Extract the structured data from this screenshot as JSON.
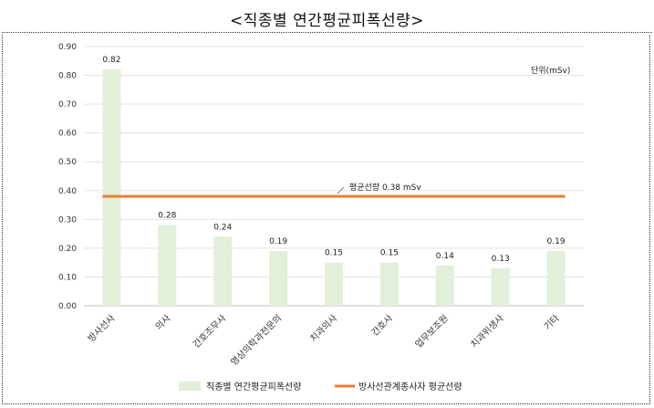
{
  "page": {
    "title": "<직종별 연간평균피폭선량>"
  },
  "chart_data": {
    "type": "bar",
    "categories": [
      "방사선사",
      "의사",
      "간호조무사",
      "영상의학과전문의",
      "치과의사",
      "간호사",
      "업무보조원",
      "치과위생사",
      "기타"
    ],
    "series": [
      {
        "name": "직종별 연간평균피폭선량",
        "type": "bar",
        "color": "#e2efd9",
        "values": [
          0.82,
          0.28,
          0.24,
          0.19,
          0.15,
          0.15,
          0.14,
          0.13,
          0.19
        ],
        "labels": [
          "0.82",
          "0.28",
          "0.24",
          "0.19",
          "0.15",
          "0.15",
          "0.14",
          "0.13",
          "0.19"
        ]
      },
      {
        "name": "방사선관계종사자 평균선량",
        "type": "line",
        "color": "#ed7d31",
        "value": 0.38
      }
    ],
    "y_ticks": [
      "0.00",
      "0.10",
      "0.20",
      "0.30",
      "0.40",
      "0.50",
      "0.60",
      "0.70",
      "0.80",
      "0.90"
    ],
    "ylim": [
      0,
      0.9
    ],
    "unit_label": "단위(mSv)",
    "avg_annotation": "평균선량 0.38 mSv",
    "grid": true,
    "legend_position": "bottom"
  }
}
